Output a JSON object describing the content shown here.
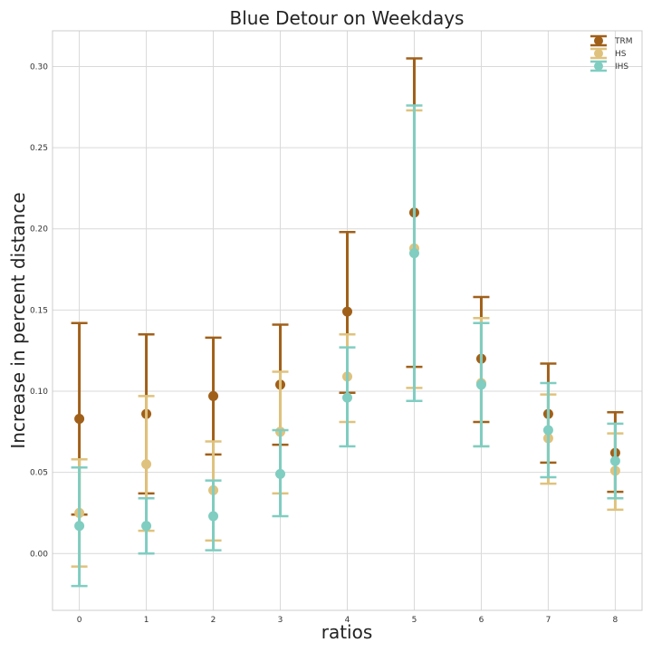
{
  "chart_data": {
    "type": "scatter",
    "title": "Blue Detour on Weekdays",
    "xlabel": "ratios",
    "ylabel": "Increase in percent distance",
    "x": [
      0,
      1,
      2,
      3,
      4,
      5,
      6,
      7,
      8
    ],
    "x_tick_labels": [
      "0",
      "1",
      "2",
      "3",
      "4",
      "5",
      "6",
      "7",
      "8"
    ],
    "xlim": [
      -0.4,
      8.4
    ],
    "ylim": [
      -0.035,
      0.322
    ],
    "y_ticks": [
      0.0,
      0.05,
      0.1,
      0.15,
      0.2,
      0.25,
      0.3
    ],
    "y_tick_labels": [
      "0.00",
      "0.05",
      "0.10",
      "0.15",
      "0.20",
      "0.25",
      "0.30"
    ],
    "grid": true,
    "legend_position": "top-right",
    "series": [
      {
        "name": "TRM",
        "color": "#a0601a",
        "values": [
          0.083,
          0.086,
          0.097,
          0.104,
          0.149,
          0.21,
          0.12,
          0.086,
          0.062
        ],
        "lower": [
          0.024,
          0.037,
          0.061,
          0.067,
          0.099,
          0.115,
          0.081,
          0.056,
          0.038
        ],
        "upper": [
          0.142,
          0.135,
          0.133,
          0.141,
          0.198,
          0.305,
          0.158,
          0.117,
          0.087
        ]
      },
      {
        "name": "HS",
        "color": "#dfc27d",
        "values": [
          0.025,
          0.055,
          0.039,
          0.075,
          0.109,
          0.188,
          0.105,
          0.071,
          0.051
        ],
        "lower": [
          -0.008,
          0.014,
          0.008,
          0.037,
          0.081,
          0.102,
          0.066,
          0.043,
          0.027
        ],
        "upper": [
          0.058,
          0.097,
          0.069,
          0.112,
          0.135,
          0.273,
          0.145,
          0.098,
          0.074
        ]
      },
      {
        "name": "IHS",
        "color": "#80cdc1",
        "values": [
          0.017,
          0.017,
          0.023,
          0.049,
          0.096,
          0.185,
          0.104,
          0.076,
          0.057
        ],
        "lower": [
          -0.02,
          0.0,
          0.002,
          0.023,
          0.066,
          0.094,
          0.066,
          0.047,
          0.034
        ],
        "upper": [
          0.053,
          0.034,
          0.045,
          0.076,
          0.127,
          0.276,
          0.142,
          0.105,
          0.08
        ]
      }
    ]
  }
}
